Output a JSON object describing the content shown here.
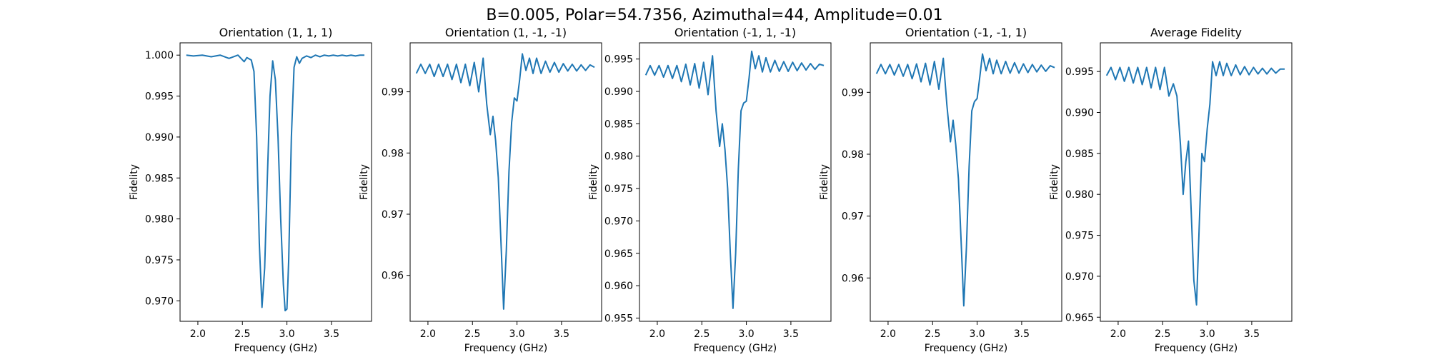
{
  "figure": {
    "suptitle": "B=0.005, Polar=54.7356, Azimuthal=44, Amplitude=0.01"
  },
  "colors": {
    "line": "#1f77b4",
    "axes": "#000000"
  },
  "chart_data": [
    {
      "type": "line",
      "title": "Orientation (1, 1, 1)",
      "xlabel": "Frequency (GHz)",
      "ylabel": "Fidelity",
      "xlim": [
        1.8,
        3.95
      ],
      "ylim": [
        0.9675,
        1.0015
      ],
      "xticks": [
        2.0,
        2.5,
        3.0,
        3.5
      ],
      "xtick_labels": [
        "2.0",
        "2.5",
        "3.0",
        "3.5"
      ],
      "yticks": [
        0.97,
        0.975,
        0.98,
        0.985,
        0.99,
        0.995,
        1.0
      ],
      "ytick_labels": [
        "0.970",
        "0.975",
        "0.980",
        "0.985",
        "0.990",
        "0.995",
        "1.000"
      ],
      "series": [
        {
          "x": [
            1.87,
            1.95,
            2.05,
            2.15,
            2.25,
            2.35,
            2.45,
            2.52,
            2.55,
            2.6,
            2.63,
            2.66,
            2.69,
            2.72,
            2.75,
            2.78,
            2.81,
            2.84,
            2.87,
            2.9,
            2.93,
            2.96,
            2.98,
            3.0,
            3.02,
            3.05,
            3.08,
            3.11,
            3.14,
            3.17,
            3.22,
            3.27,
            3.32,
            3.37,
            3.42,
            3.47,
            3.52,
            3.57,
            3.62,
            3.67,
            3.72,
            3.77,
            3.82,
            3.87
          ],
          "y": [
            1.0,
            0.9999,
            1.0,
            0.9998,
            1.0,
            0.9996,
            1.0,
            0.9992,
            0.9997,
            0.9994,
            0.998,
            0.99,
            0.977,
            0.9692,
            0.974,
            0.985,
            0.995,
            0.9993,
            0.997,
            0.99,
            0.98,
            0.972,
            0.9688,
            0.969,
            0.975,
            0.99,
            0.9985,
            0.9998,
            0.999,
            0.9996,
            0.9999,
            0.9997,
            1.0,
            0.9998,
            1.0,
            0.9999,
            1.0,
            0.9999,
            1.0,
            0.9999,
            1.0,
            0.9999,
            1.0,
            1.0
          ]
        }
      ]
    },
    {
      "type": "line",
      "title": "Orientation (1, -1, -1)",
      "xlabel": "Frequency (GHz)",
      "ylabel": "Fidelity",
      "xlim": [
        1.8,
        3.95
      ],
      "ylim": [
        0.9525,
        0.998
      ],
      "xticks": [
        2.0,
        2.5,
        3.0,
        3.5
      ],
      "xtick_labels": [
        "2.0",
        "2.5",
        "3.0",
        "3.5"
      ],
      "yticks": [
        0.96,
        0.97,
        0.98,
        0.99
      ],
      "ytick_labels": [
        "0.96",
        "0.97",
        "0.98",
        "0.99"
      ],
      "series": [
        {
          "x": [
            1.87,
            1.92,
            1.97,
            2.02,
            2.07,
            2.12,
            2.17,
            2.22,
            2.27,
            2.32,
            2.37,
            2.42,
            2.47,
            2.52,
            2.57,
            2.62,
            2.66,
            2.7,
            2.73,
            2.76,
            2.79,
            2.82,
            2.85,
            2.88,
            2.91,
            2.94,
            2.97,
            3.0,
            3.03,
            3.06,
            3.1,
            3.14,
            3.18,
            3.22,
            3.27,
            3.32,
            3.37,
            3.42,
            3.47,
            3.52,
            3.57,
            3.62,
            3.67,
            3.72,
            3.77,
            3.82,
            3.87
          ],
          "y": [
            0.993,
            0.9945,
            0.993,
            0.9945,
            0.9925,
            0.9945,
            0.9925,
            0.9945,
            0.992,
            0.9945,
            0.9915,
            0.9945,
            0.991,
            0.9948,
            0.99,
            0.9955,
            0.988,
            0.983,
            0.986,
            0.982,
            0.976,
            0.9655,
            0.9545,
            0.964,
            0.977,
            0.985,
            0.989,
            0.9885,
            0.992,
            0.9962,
            0.9935,
            0.9955,
            0.993,
            0.9955,
            0.993,
            0.995,
            0.9932,
            0.9948,
            0.9932,
            0.9946,
            0.9934,
            0.9945,
            0.9934,
            0.9944,
            0.9935,
            0.9944,
            0.994
          ]
        }
      ]
    },
    {
      "type": "line",
      "title": "Orientation (-1, 1, -1)",
      "xlabel": "Frequency (GHz)",
      "ylabel": "Fidelity",
      "xlim": [
        1.8,
        3.95
      ],
      "ylim": [
        0.9545,
        0.9975
      ],
      "xticks": [
        2.0,
        2.5,
        3.0,
        3.5
      ],
      "xtick_labels": [
        "2.0",
        "2.5",
        "3.0",
        "3.5"
      ],
      "yticks": [
        0.955,
        0.96,
        0.965,
        0.97,
        0.975,
        0.98,
        0.985,
        0.99,
        0.995
      ],
      "ytick_labels": [
        "0.955",
        "0.960",
        "0.965",
        "0.970",
        "0.975",
        "0.980",
        "0.985",
        "0.990",
        "0.995"
      ],
      "series": [
        {
          "x": [
            1.87,
            1.92,
            1.97,
            2.02,
            2.07,
            2.12,
            2.17,
            2.22,
            2.27,
            2.32,
            2.37,
            2.42,
            2.47,
            2.52,
            2.57,
            2.62,
            2.66,
            2.7,
            2.73,
            2.76,
            2.79,
            2.82,
            2.85,
            2.88,
            2.91,
            2.94,
            2.97,
            3.0,
            3.03,
            3.06,
            3.1,
            3.14,
            3.18,
            3.22,
            3.27,
            3.32,
            3.37,
            3.42,
            3.47,
            3.52,
            3.57,
            3.62,
            3.67,
            3.72,
            3.77,
            3.82,
            3.87
          ],
          "y": [
            0.9925,
            0.994,
            0.9925,
            0.994,
            0.9922,
            0.994,
            0.992,
            0.994,
            0.9915,
            0.9942,
            0.991,
            0.9943,
            0.9905,
            0.9945,
            0.9895,
            0.9955,
            0.987,
            0.9815,
            0.985,
            0.981,
            0.975,
            0.965,
            0.9565,
            0.965,
            0.978,
            0.987,
            0.9882,
            0.9885,
            0.992,
            0.9962,
            0.9935,
            0.9955,
            0.993,
            0.9952,
            0.993,
            0.9948,
            0.9931,
            0.9946,
            0.9931,
            0.9945,
            0.9932,
            0.9944,
            0.9933,
            0.9943,
            0.9934,
            0.9942,
            0.994
          ]
        }
      ]
    },
    {
      "type": "line",
      "title": "Orientation (-1, -1, 1)",
      "xlabel": "Frequency (GHz)",
      "ylabel": "Fidelity",
      "xlim": [
        1.8,
        3.95
      ],
      "ylim": [
        0.953,
        0.998
      ],
      "xticks": [
        2.0,
        2.5,
        3.0,
        3.5
      ],
      "xtick_labels": [
        "2.0",
        "2.5",
        "3.0",
        "3.5"
      ],
      "yticks": [
        0.96,
        0.97,
        0.98,
        0.99
      ],
      "ytick_labels": [
        "0.96",
        "0.97",
        "0.98",
        "0.99"
      ],
      "series": [
        {
          "x": [
            1.87,
            1.92,
            1.97,
            2.02,
            2.07,
            2.12,
            2.17,
            2.22,
            2.27,
            2.32,
            2.37,
            2.42,
            2.47,
            2.52,
            2.57,
            2.62,
            2.66,
            2.7,
            2.73,
            2.76,
            2.79,
            2.82,
            2.85,
            2.88,
            2.91,
            2.94,
            2.97,
            3.0,
            3.03,
            3.06,
            3.1,
            3.14,
            3.18,
            3.22,
            3.27,
            3.32,
            3.37,
            3.42,
            3.47,
            3.52,
            3.57,
            3.62,
            3.67,
            3.72,
            3.77,
            3.82,
            3.87
          ],
          "y": [
            0.993,
            0.9945,
            0.993,
            0.9945,
            0.9928,
            0.9945,
            0.9926,
            0.9945,
            0.9922,
            0.9946,
            0.9917,
            0.9947,
            0.9912,
            0.995,
            0.9905,
            0.9955,
            0.988,
            0.982,
            0.9855,
            0.9815,
            0.976,
            0.966,
            0.9555,
            0.965,
            0.978,
            0.987,
            0.9885,
            0.989,
            0.9925,
            0.9962,
            0.9935,
            0.9955,
            0.993,
            0.9952,
            0.993,
            0.995,
            0.9931,
            0.9948,
            0.9931,
            0.9946,
            0.9932,
            0.9945,
            0.9933,
            0.9944,
            0.9934,
            0.9943,
            0.994
          ]
        }
      ]
    },
    {
      "type": "line",
      "title": "Average Fidelity",
      "xlabel": "Frequency (GHz)",
      "ylabel": "Fidelity",
      "xlim": [
        1.8,
        3.95
      ],
      "ylim": [
        0.9645,
        0.9985
      ],
      "xticks": [
        2.0,
        2.5,
        3.0,
        3.5
      ],
      "xtick_labels": [
        "2.0",
        "2.5",
        "3.0",
        "3.5"
      ],
      "yticks": [
        0.965,
        0.97,
        0.975,
        0.98,
        0.985,
        0.99,
        0.995
      ],
      "ytick_labels": [
        "0.965",
        "0.970",
        "0.975",
        "0.980",
        "0.985",
        "0.990",
        "0.995"
      ],
      "series": [
        {
          "x": [
            1.87,
            1.92,
            1.97,
            2.02,
            2.07,
            2.12,
            2.17,
            2.22,
            2.27,
            2.32,
            2.37,
            2.42,
            2.47,
            2.52,
            2.57,
            2.62,
            2.66,
            2.7,
            2.73,
            2.76,
            2.79,
            2.82,
            2.85,
            2.88,
            2.91,
            2.94,
            2.97,
            3.0,
            3.03,
            3.06,
            3.1,
            3.14,
            3.18,
            3.22,
            3.27,
            3.32,
            3.37,
            3.42,
            3.47,
            3.52,
            3.57,
            3.62,
            3.67,
            3.72,
            3.77,
            3.82,
            3.87
          ],
          "y": [
            0.9945,
            0.9955,
            0.994,
            0.9955,
            0.9938,
            0.9955,
            0.9936,
            0.9955,
            0.9934,
            0.9955,
            0.993,
            0.9955,
            0.9928,
            0.9955,
            0.992,
            0.9935,
            0.992,
            0.986,
            0.98,
            0.984,
            0.9865,
            0.978,
            0.9695,
            0.9665,
            0.976,
            0.985,
            0.984,
            0.988,
            0.991,
            0.9962,
            0.9945,
            0.9962,
            0.9945,
            0.996,
            0.9945,
            0.9958,
            0.9946,
            0.9956,
            0.9946,
            0.9955,
            0.9947,
            0.9954,
            0.9947,
            0.9954,
            0.9948,
            0.9953,
            0.9953
          ]
        }
      ]
    }
  ]
}
